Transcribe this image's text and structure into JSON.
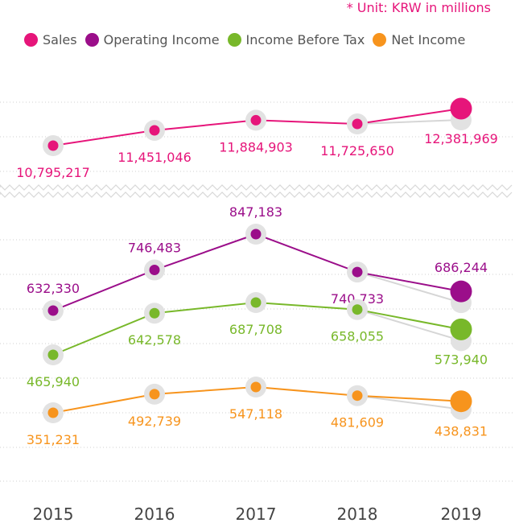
{
  "unit_note": "* Unit: KRW in millions",
  "chart_data": {
    "type": "line",
    "x": [
      "2015",
      "2016",
      "2017",
      "2018",
      "2019"
    ],
    "series": [
      {
        "name": "Sales",
        "color": "#e6157a",
        "values": [
          10795217,
          11451046,
          11884903,
          11725650,
          12381969
        ],
        "labels": [
          "10,795,217",
          "11,451,046",
          "11,884,903",
          "11,725,650",
          "12,381,969"
        ]
      },
      {
        "name": "Operating Income",
        "color": "#9b0e8a",
        "values": [
          632330,
          746483,
          847183,
          740733,
          686244
        ],
        "labels": [
          "632,330",
          "746,483",
          "847,183",
          "740,733",
          "686,244"
        ]
      },
      {
        "name": "Income Before Tax",
        "color": "#78b82a",
        "values": [
          465940,
          642578,
          687708,
          658055,
          573940
        ],
        "labels": [
          "465,940",
          "642,578",
          "687,708",
          "658,055",
          "573,940"
        ]
      },
      {
        "name": "Net Income",
        "color": "#f7941d",
        "values": [
          351231,
          492739,
          547118,
          481609,
          438831
        ],
        "labels": [
          "351,231",
          "492,739",
          "547,118",
          "481,609",
          "438,831"
        ]
      }
    ],
    "axis_break": true,
    "grid": "horizontal-dotted",
    "legend": "top-left"
  }
}
